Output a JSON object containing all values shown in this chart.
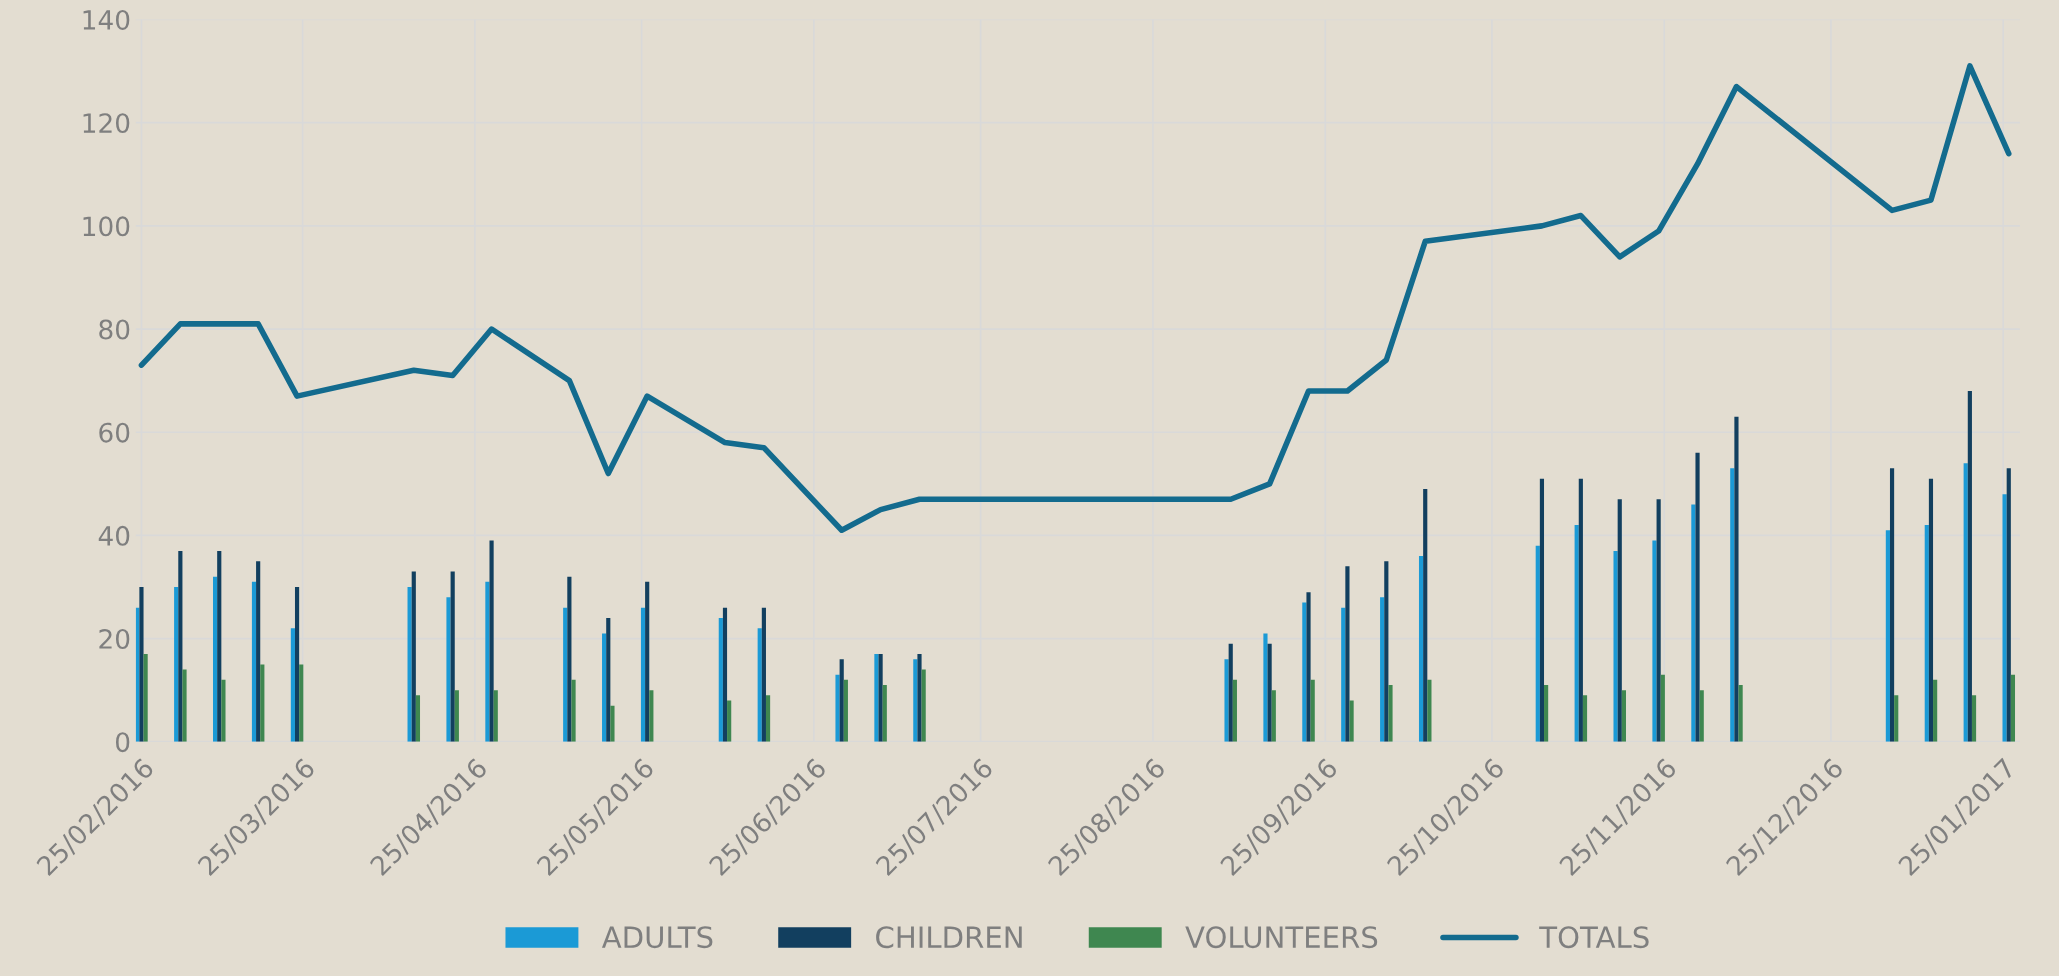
{
  "chart_data": {
    "type": "bar",
    "x": [
      "2016-02-25",
      "2016-03-03",
      "2016-03-10",
      "2016-03-17",
      "2016-03-24",
      "2016-04-14",
      "2016-04-21",
      "2016-04-28",
      "2016-05-12",
      "2016-05-19",
      "2016-05-26",
      "2016-06-09",
      "2016-06-16",
      "2016-06-30",
      "2016-07-07",
      "2016-07-14",
      "2016-09-08",
      "2016-09-15",
      "2016-09-22",
      "2016-09-29",
      "2016-10-06",
      "2016-10-13",
      "2016-11-03",
      "2016-11-10",
      "2016-11-17",
      "2016-11-24",
      "2016-12-01",
      "2016-12-08",
      "2017-01-05",
      "2017-01-12",
      "2017-01-19",
      "2017-01-26"
    ],
    "series": [
      {
        "name": "ADULTS",
        "color": "#1b9ad6",
        "values": [
          26,
          30,
          32,
          31,
          22,
          30,
          28,
          31,
          26,
          21,
          26,
          24,
          22,
          13,
          17,
          16,
          16,
          21,
          27,
          26,
          28,
          36,
          38,
          42,
          37,
          39,
          46,
          53,
          41,
          42,
          54,
          48
        ]
      },
      {
        "name": "CHILDREN",
        "color": "#123f5f",
        "values": [
          30,
          37,
          37,
          35,
          30,
          33,
          33,
          39,
          32,
          24,
          31,
          26,
          26,
          16,
          17,
          17,
          19,
          19,
          29,
          34,
          35,
          49,
          51,
          51,
          47,
          47,
          56,
          63,
          53,
          51,
          68,
          53
        ]
      },
      {
        "name": "VOLUNTEERS",
        "color": "#3f8750",
        "values": [
          17,
          14,
          12,
          15,
          15,
          9,
          10,
          10,
          12,
          7,
          10,
          8,
          9,
          12,
          11,
          14,
          12,
          10,
          12,
          8,
          11,
          12,
          11,
          9,
          10,
          13,
          10,
          11,
          9,
          12,
          9,
          13
        ]
      },
      {
        "name": "TOTALS",
        "type": "line",
        "color": "#136b8e",
        "values": [
          73,
          81,
          81,
          81,
          67,
          72,
          71,
          80,
          70,
          52,
          67,
          58,
          57,
          41,
          45,
          47,
          47,
          50,
          68,
          68,
          74,
          97,
          100,
          102,
          94,
          99,
          112,
          127,
          103,
          105,
          131,
          114
        ]
      }
    ],
    "xlim": [
      "2016-02-24",
      "2017-01-28"
    ],
    "xticks": [
      {
        "value": "2016-02-25",
        "label": "25/02/2016"
      },
      {
        "value": "2016-03-25",
        "label": "25/03/2016"
      },
      {
        "value": "2016-04-25",
        "label": "25/04/2016"
      },
      {
        "value": "2016-05-25",
        "label": "25/05/2016"
      },
      {
        "value": "2016-06-25",
        "label": "25/06/2016"
      },
      {
        "value": "2016-07-25",
        "label": "25/07/2016"
      },
      {
        "value": "2016-08-25",
        "label": "25/08/2016"
      },
      {
        "value": "2016-09-25",
        "label": "25/09/2016"
      },
      {
        "value": "2016-10-25",
        "label": "25/10/2016"
      },
      {
        "value": "2016-11-25",
        "label": "25/11/2016"
      },
      {
        "value": "2016-12-25",
        "label": "25/12/2016"
      },
      {
        "value": "2017-01-25",
        "label": "25/01/2017"
      }
    ],
    "ylim": [
      0,
      140
    ],
    "yticks": [
      0,
      20,
      40,
      60,
      80,
      100,
      120,
      140
    ],
    "grid": true,
    "legend": "bottom"
  }
}
